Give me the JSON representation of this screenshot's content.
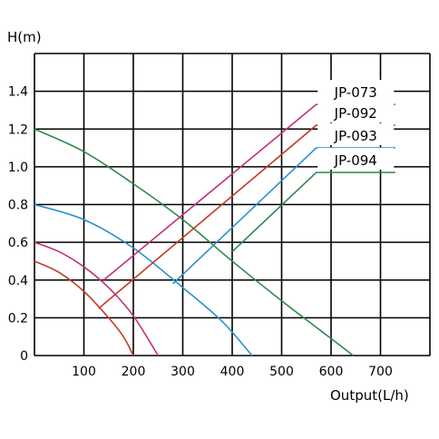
{
  "chart_data": {
    "type": "line",
    "ylabel": "H(m)",
    "xlabel": "Output(L/h)",
    "xlim": [
      0,
      800
    ],
    "ylim": [
      0,
      1.6
    ],
    "xticks": [
      100,
      200,
      300,
      400,
      500,
      600,
      700
    ],
    "yticks": [
      0,
      0.2,
      0.4,
      0.6,
      0.8,
      1.0,
      1.2,
      1.4
    ],
    "ytick_labels": [
      "0",
      "0.2",
      "0.4",
      "0.6",
      "0.8",
      "1.0",
      "1.2",
      "1.4"
    ],
    "grid": true,
    "legend_placement": "top-right",
    "series": [
      {
        "name": "JP-073",
        "color": "#c0307a",
        "points": [
          [
            0,
            0.6
          ],
          [
            50,
            0.55
          ],
          [
            100,
            0.47
          ],
          [
            150,
            0.36
          ],
          [
            200,
            0.21
          ],
          [
            250,
            0
          ]
        ],
        "leader": [
          [
            140,
            0.4
          ],
          [
            570,
            1.33
          ],
          [
            730,
            1.33
          ]
        ]
      },
      {
        "name": "JP-092",
        "color": "#c43a2a",
        "points": [
          [
            0,
            0.5
          ],
          [
            50,
            0.44
          ],
          [
            100,
            0.34
          ],
          [
            150,
            0.2
          ],
          [
            180,
            0.1
          ],
          [
            200,
            0
          ]
        ],
        "leader": [
          [
            130,
            0.25
          ],
          [
            570,
            1.22
          ],
          [
            730,
            1.22
          ]
        ]
      },
      {
        "name": "JP-093",
        "color": "#2a8fd0",
        "points": [
          [
            0,
            0.8
          ],
          [
            100,
            0.72
          ],
          [
            200,
            0.57
          ],
          [
            300,
            0.36
          ],
          [
            380,
            0.18
          ],
          [
            440,
            0
          ]
        ],
        "leader": [
          [
            280,
            0.38
          ],
          [
            570,
            1.1
          ],
          [
            730,
            1.1
          ]
        ]
      },
      {
        "name": "JP-094",
        "color": "#2c8a4a",
        "points": [
          [
            0,
            1.2
          ],
          [
            100,
            1.08
          ],
          [
            200,
            0.91
          ],
          [
            300,
            0.72
          ],
          [
            400,
            0.5
          ],
          [
            500,
            0.29
          ],
          [
            580,
            0.13
          ],
          [
            645,
            0
          ]
        ],
        "leader": [
          [
            400,
            0.55
          ],
          [
            570,
            0.97
          ],
          [
            730,
            0.97
          ]
        ]
      }
    ]
  }
}
